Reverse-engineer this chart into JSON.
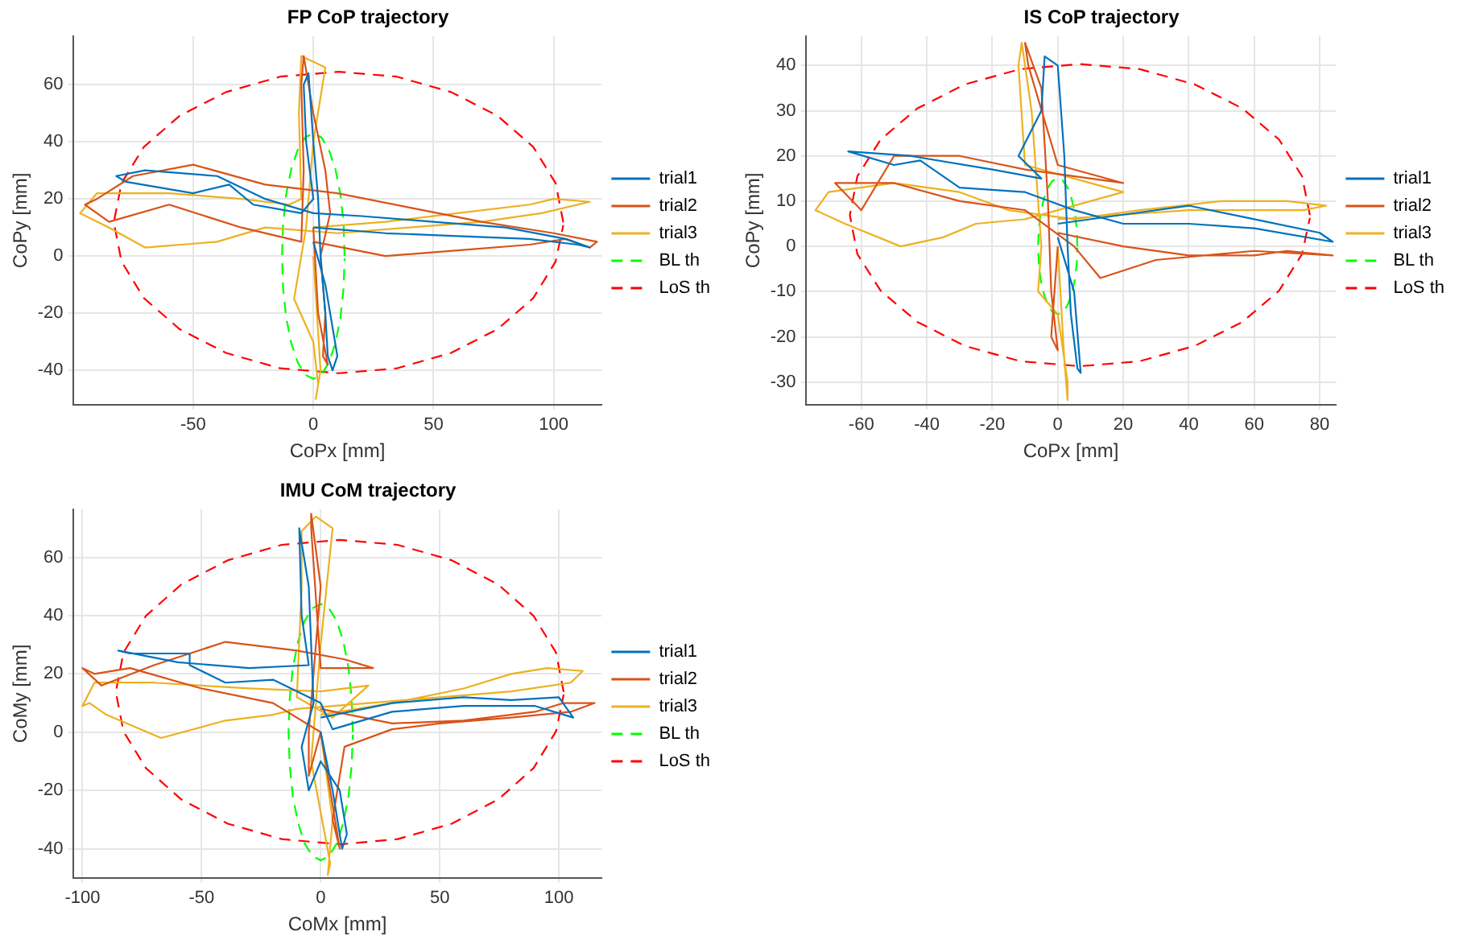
{
  "chart_data": [
    {
      "type": "line",
      "title": "FP CoP trajectory",
      "xlabel": "CoPx [mm]",
      "ylabel": "CoPy [mm]",
      "xlim": [
        -100,
        120
      ],
      "ylim": [
        -52,
        77
      ],
      "xticks": [
        -50,
        0,
        50,
        100
      ],
      "yticks": [
        -40,
        -20,
        0,
        20,
        40,
        60
      ],
      "grid": true,
      "legend": "right",
      "series": [
        {
          "name": "trial1",
          "color": "#0072bd",
          "x": [
            0,
            30,
            60,
            90,
            110,
            115,
            105,
            80,
            50,
            20,
            0,
            -20,
            -40,
            -70,
            -82,
            -78,
            -50,
            -35,
            -25,
            -5,
            0,
            -3,
            -4,
            -2,
            0,
            2,
            3,
            5,
            6,
            8,
            10,
            5,
            0
          ],
          "values": [
            10,
            8,
            7,
            6,
            4,
            3,
            6,
            10,
            12,
            14,
            15,
            20,
            28,
            30,
            28,
            26,
            22,
            25,
            18,
            15,
            20,
            40,
            60,
            64,
            40,
            20,
            0,
            -20,
            -35,
            -40,
            -35,
            -10,
            5
          ]
        },
        {
          "name": "trial2",
          "color": "#d95319",
          "x": [
            0,
            30,
            60,
            90,
            105,
            115,
            118,
            100,
            70,
            40,
            10,
            -20,
            -50,
            -75,
            -90,
            -95,
            -85,
            -60,
            -30,
            -5,
            -4,
            -5,
            -4,
            0,
            5,
            7,
            3,
            5,
            4,
            6,
            2,
            0
          ],
          "values": [
            5,
            0,
            2,
            4,
            6,
            3,
            5,
            8,
            12,
            17,
            22,
            25,
            32,
            28,
            20,
            18,
            12,
            18,
            10,
            5,
            30,
            60,
            70,
            50,
            30,
            15,
            0,
            -20,
            -35,
            -38,
            -20,
            10
          ]
        },
        {
          "name": "trial3",
          "color": "#edb120",
          "x": [
            0,
            30,
            60,
            90,
            100,
            115,
            95,
            70,
            40,
            10,
            -20,
            -40,
            -70,
            -85,
            -97,
            -90,
            -60,
            -30,
            -10,
            -5,
            -6,
            -5,
            5,
            0,
            -3,
            -8,
            0,
            2,
            1,
            3,
            0
          ],
          "values": [
            10,
            12,
            15,
            18,
            20,
            19,
            15,
            12,
            10,
            8,
            10,
            5,
            3,
            10,
            15,
            22,
            22,
            20,
            18,
            20,
            50,
            70,
            66,
            40,
            10,
            -15,
            -30,
            -45,
            -50,
            -40,
            0
          ]
        },
        {
          "name": "BL th",
          "color": "#00ff00",
          "line_style": "dashed",
          "x": [
            13,
            12.6,
            11.3,
            9.2,
            6.5,
            3.4,
            0,
            -3.4,
            -6.5,
            -9.2,
            -11.3,
            -12.6,
            -13,
            -12.6,
            -11.3,
            -9.2,
            -6.5,
            -3.4,
            0,
            3.4,
            6.5,
            9.2,
            11.3,
            12.6,
            13
          ],
          "values": [
            0,
            11.1,
            21.5,
            30.4,
            37.2,
            41.5,
            43,
            41.5,
            37.2,
            30.4,
            21.5,
            11.1,
            0,
            -11.1,
            -21.5,
            -30.4,
            -37.2,
            -41.5,
            -43,
            -41.5,
            -37.2,
            -30.4,
            -21.5,
            -11.1,
            -0.8
          ]
        },
        {
          "name": "LoS th",
          "color": "#ff0000",
          "line_style": "dashed",
          "x": [
            104,
            100.8,
            91.5,
            76.6,
            57.3,
            34.7,
            10.5,
            -13.7,
            -36.3,
            -55.6,
            -70.5,
            -79.8,
            -83,
            -79.8,
            -70.5,
            -55.6,
            -36.3,
            -13.7,
            10.5,
            34.7,
            57.3,
            76.6,
            91.5,
            100.8,
            104
          ],
          "values": [
            11.8,
            25.5,
            38.2,
            49.1,
            57.4,
            62.8,
            64.5,
            62.8,
            57.4,
            49.1,
            38.2,
            25.5,
            11.8,
            -1.9,
            -14.7,
            -25.6,
            -33.9,
            -39.3,
            -41,
            -39.3,
            -33.9,
            -25.6,
            -14.7,
            -1.9,
            10.8
          ]
        }
      ]
    },
    {
      "type": "line",
      "title": "IS CoP trajectory",
      "xlabel": "CoPx [mm]",
      "ylabel": "CoPy [mm]",
      "xlim": [
        -77,
        85
      ],
      "ylim": [
        -35,
        46.5
      ],
      "xticks": [
        -60,
        -40,
        -20,
        0,
        20,
        40,
        60,
        80
      ],
      "yticks": [
        -30,
        -20,
        -10,
        0,
        10,
        20,
        30,
        40
      ],
      "grid": true,
      "legend": "right",
      "series": [
        {
          "name": "trial1",
          "color": "#0072bd",
          "x": [
            0,
            20,
            40,
            60,
            80,
            84,
            60,
            40,
            20,
            5,
            -10,
            -30,
            -42,
            -50,
            -64,
            -45,
            -20,
            -5,
            -12,
            -5,
            -4,
            0,
            2,
            3,
            4,
            6,
            7,
            5,
            0
          ],
          "values": [
            5,
            7,
            9,
            6,
            3,
            1,
            4,
            5,
            5,
            8,
            12,
            13,
            19,
            18,
            21,
            20,
            17,
            15,
            20,
            30,
            42,
            40,
            20,
            0,
            -15,
            -27,
            -28,
            -10,
            2
          ]
        },
        {
          "name": "trial2",
          "color": "#d95319",
          "x": [
            0,
            20,
            40,
            60,
            70,
            84,
            60,
            30,
            13,
            5,
            -10,
            -30,
            -50,
            -68,
            -60,
            -50,
            -30,
            -10,
            20,
            0,
            -9,
            -10,
            -5,
            -3,
            -2,
            0,
            -2,
            0
          ],
          "values": [
            3,
            0,
            -2,
            -2,
            -1,
            -2,
            -1,
            -3,
            -7,
            0,
            8,
            10,
            14,
            14,
            8,
            20,
            20,
            17,
            14,
            18,
            40,
            45,
            35,
            10,
            -10,
            -23,
            -20,
            0
          ]
        },
        {
          "name": "trial3",
          "color": "#edb120",
          "x": [
            0,
            20,
            40,
            60,
            75,
            82,
            70,
            50,
            25,
            5,
            -15,
            -30,
            -50,
            -70,
            -74,
            -65,
            -48,
            -35,
            -25,
            -10,
            20,
            5,
            -10,
            -12,
            -11,
            -8,
            -5,
            -6,
            0,
            3,
            3,
            2,
            0
          ],
          "values": [
            6,
            7,
            8,
            8,
            8,
            9,
            10,
            10,
            8,
            6,
            8,
            12,
            14,
            12,
            8,
            5,
            0,
            2,
            5,
            6,
            12,
            15,
            18,
            40,
            45,
            30,
            0,
            -10,
            -15,
            -30,
            -34,
            -25,
            0
          ]
        },
        {
          "name": "BL th",
          "color": "#00ff00",
          "line_style": "dashed",
          "x": [
            6,
            5.8,
            5.2,
            4.2,
            3,
            1.6,
            0,
            -1.6,
            -3,
            -4.2,
            -5.2,
            -5.8,
            -6,
            -5.8,
            -5.2,
            -4.2,
            -3,
            -1.6,
            0,
            1.6,
            3,
            4.2,
            5.2,
            5.8,
            6
          ],
          "values": [
            0,
            3.9,
            7.5,
            10.6,
            13,
            14.5,
            15,
            14.5,
            13,
            10.6,
            7.5,
            3.9,
            0,
            -3.9,
            -7.5,
            -10.6,
            -13,
            -14.5,
            -15,
            -14.5,
            -13,
            -10.6,
            -7.5,
            -3.9,
            -0.3
          ]
        },
        {
          "name": "LoS th",
          "color": "#ff0000",
          "line_style": "dashed",
          "x": [
            77,
            74.6,
            67.6,
            56.4,
            41.9,
            25,
            6.8,
            -11.4,
            -28.4,
            -42.9,
            -54.1,
            -61.2,
            -63.5,
            -61.2,
            -54.1,
            -42.9,
            -28.4,
            -11.4,
            6.8,
            25,
            41.9,
            56.4,
            67.6,
            74.6,
            77
          ],
          "values": [
            6.9,
            15.5,
            23.6,
            30.5,
            35.8,
            39.2,
            40.3,
            39.2,
            35.8,
            30.5,
            23.6,
            15.5,
            6.9,
            -1.7,
            -9.8,
            -16.7,
            -22,
            -25.4,
            -26.5,
            -25.4,
            -22,
            -16.7,
            -9.8,
            -1.7,
            6.3
          ]
        }
      ]
    },
    {
      "type": "line",
      "title": "IMU CoM trajectory",
      "xlabel": "CoMx [mm]",
      "ylabel": "CoMy [mm]",
      "xlim": [
        -104,
        118
      ],
      "ylim": [
        -50,
        76.5
      ],
      "xticks": [
        -100,
        -50,
        0,
        50,
        100
      ],
      "yticks": [
        -40,
        -20,
        0,
        20,
        40,
        60
      ],
      "grid": true,
      "legend": "right",
      "series": [
        {
          "name": "trial1",
          "color": "#0072bd",
          "x": [
            0,
            30,
            60,
            80,
            100,
            106,
            90,
            60,
            30,
            5,
            0,
            -20,
            -40,
            -55,
            -55,
            -80,
            -85,
            -60,
            -30,
            -5,
            -8,
            -9,
            -5,
            -3,
            -8,
            -5,
            0,
            8,
            11,
            9,
            5,
            0
          ],
          "values": [
            5,
            10,
            12,
            11,
            12,
            5,
            9,
            9,
            7,
            1,
            10,
            18,
            17,
            23,
            27,
            27,
            28,
            24,
            22,
            23,
            40,
            70,
            50,
            10,
            -5,
            -20,
            -10,
            -20,
            -35,
            -40,
            -20,
            0
          ]
        },
        {
          "name": "trial2",
          "color": "#d95319",
          "x": [
            0,
            30,
            60,
            90,
            102,
            115,
            105,
            80,
            50,
            30,
            10,
            5,
            8,
            4,
            0,
            -20,
            -50,
            -80,
            -95,
            -100,
            -92,
            -70,
            -40,
            -10,
            10,
            22,
            0,
            -4,
            -4,
            0,
            -5,
            -5,
            0
          ],
          "values": [
            8,
            3,
            4,
            7,
            10,
            10,
            7,
            5,
            3,
            1,
            -5,
            -30,
            -40,
            -20,
            0,
            10,
            15,
            22,
            20,
            22,
            16,
            23,
            31,
            28,
            25,
            22,
            22,
            70,
            75,
            50,
            0,
            -15,
            0
          ]
        },
        {
          "name": "trial3",
          "color": "#edb120",
          "x": [
            0,
            30,
            60,
            80,
            95,
            110,
            105,
            80,
            50,
            20,
            -10,
            -20,
            -40,
            -67,
            -90,
            -97,
            -100,
            -95,
            -70,
            -30,
            0,
            20,
            5,
            -10,
            -8,
            -8,
            -2,
            5,
            0,
            -4,
            4,
            3,
            5,
            0
          ],
          "values": [
            6,
            10,
            15,
            20,
            22,
            21,
            17,
            14,
            12,
            10,
            8,
            6,
            4,
            -2,
            6,
            10,
            9,
            17,
            17,
            15,
            14,
            16,
            5,
            12,
            50,
            69,
            74,
            70,
            30,
            -10,
            -45,
            -49,
            -30,
            0
          ]
        },
        {
          "name": "BL th",
          "color": "#00ff00",
          "line_style": "dashed",
          "x": [
            13.5,
            13,
            11.7,
            9.5,
            6.8,
            3.5,
            0,
            -3.5,
            -6.8,
            -9.5,
            -11.7,
            -13,
            -13.5,
            -13,
            -11.7,
            -9.5,
            -6.8,
            -3.5,
            0,
            3.5,
            6.8,
            9.5,
            11.7,
            13,
            13.5
          ],
          "values": [
            0,
            11.4,
            22,
            31.1,
            38.1,
            42.5,
            44,
            42.5,
            38.1,
            31.1,
            22,
            11.4,
            0,
            -11.4,
            -22,
            -31.1,
            -38.1,
            -42.5,
            -44,
            -42.5,
            -38.1,
            -31.1,
            -22,
            -11.4,
            -0.8
          ]
        },
        {
          "name": "LoS th",
          "color": "#ff0000",
          "line_style": "dashed",
          "x": [
            102,
            98.8,
            89.4,
            74.5,
            55,
            32.3,
            8,
            -16.3,
            -39,
            -58.5,
            -73.4,
            -82.8,
            -86,
            -82.8,
            -73.4,
            -58.5,
            -39,
            -16.3,
            8,
            32.3,
            55,
            74.5,
            89.4,
            98.8,
            102
          ],
          "values": [
            13.8,
            27.3,
            39.9,
            50.7,
            59,
            64.3,
            66,
            64.3,
            59,
            50.7,
            39.9,
            27.3,
            13.8,
            0.3,
            -12.3,
            -23.1,
            -31.4,
            -36.7,
            -38.5,
            -36.7,
            -31.4,
            -23.1,
            -12.3,
            0.3,
            12.9
          ]
        }
      ]
    }
  ]
}
